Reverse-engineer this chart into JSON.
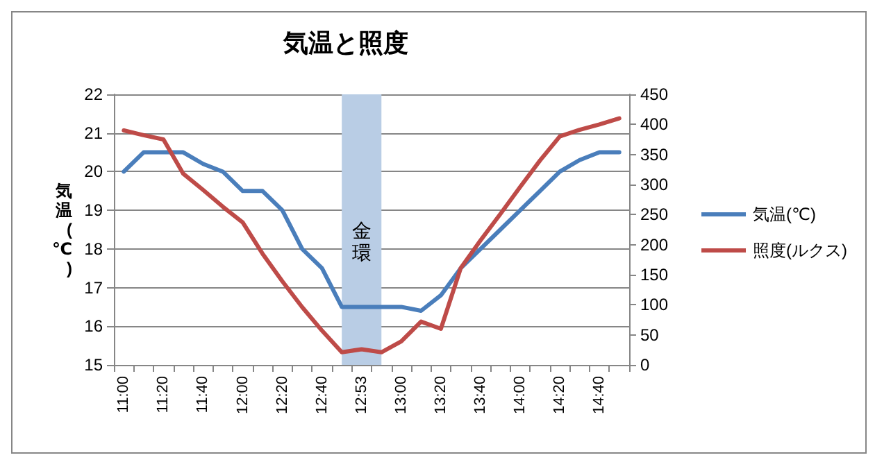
{
  "chart_data": {
    "type": "line",
    "title": "気温と照度",
    "ylabel": "気温(℃)",
    "categories": [
      "11:00",
      null,
      "11:20",
      null,
      "11:40",
      null,
      "12:00",
      null,
      "12:20",
      null,
      "12:40",
      null,
      "12:53",
      null,
      "13:00",
      null,
      "13:20",
      null,
      "13:40",
      null,
      "14:00",
      null,
      "14:20",
      null,
      "14:40",
      null
    ],
    "series": [
      {
        "name": "気温(℃)",
        "color": "#4a7ebb",
        "values": [
          20.0,
          20.5,
          20.5,
          20.5,
          20.2,
          20.0,
          19.5,
          19.5,
          19.0,
          18.0,
          17.5,
          16.5,
          16.5,
          16.5,
          16.5,
          16.4,
          16.8,
          17.5,
          18.0,
          18.5,
          19.0,
          19.5,
          20.0,
          20.3,
          20.5,
          20.5
        ]
      },
      {
        "name": "照度(ルクス)",
        "color": "#be4b48",
        "axis": "y2",
        "values": [
          390,
          382,
          375,
          318,
          291,
          263,
          237,
          185,
          139,
          96,
          57,
          21,
          26,
          21,
          39,
          72,
          60,
          161,
          207,
          251,
          296,
          340,
          380,
          391,
          400,
          410
        ]
      }
    ],
    "ylim": [
      15,
      22
    ],
    "yticks": [
      15,
      16,
      17,
      18,
      19,
      20,
      21,
      22
    ],
    "y2lim": [
      0,
      450
    ],
    "y2ticks": [
      0,
      50,
      100,
      150,
      200,
      250,
      300,
      350,
      400,
      450
    ],
    "annotations": [
      "金環"
    ],
    "grid": "y",
    "legend": "right",
    "marker": "none",
    "line_style": "solid"
  }
}
